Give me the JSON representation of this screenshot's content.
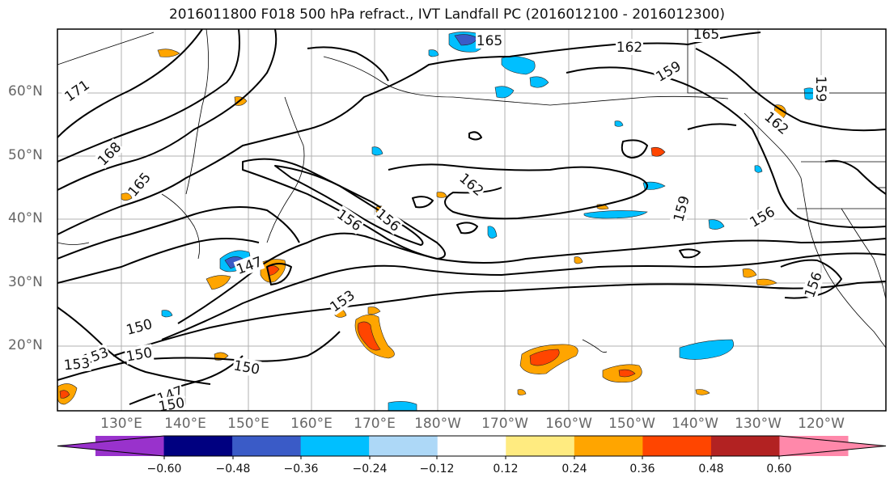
{
  "title": "2016011800 F018 500 hPa refract., IVT Landfall PC (2016012100 - 2016012300)",
  "map": {
    "lat_labels": [
      {
        "text": "60°N",
        "lat": 60
      },
      {
        "text": "50°N",
        "lat": 50
      },
      {
        "text": "40°N",
        "lat": 40
      },
      {
        "text": "30°N",
        "lat": 30
      },
      {
        "text": "20°N",
        "lat": 20
      }
    ],
    "lon_labels": [
      "130°E",
      "140°E",
      "150°E",
      "160°E",
      "170°E",
      "180°W",
      "170°W",
      "160°W",
      "150°W",
      "140°W",
      "130°W",
      "120°W"
    ],
    "contour_labels": [
      "171",
      "168",
      "165",
      "165",
      "165",
      "162",
      "162",
      "162",
      "159",
      "159",
      "159",
      "156",
      "156",
      "156",
      "156",
      "153",
      "153",
      "153",
      "150",
      "150",
      "150",
      "147",
      "147",
      "150"
    ]
  },
  "colorbar": {
    "tick_labels": [
      "−0.60",
      "−0.48",
      "−0.36",
      "−0.24",
      "−0.12",
      "0.12",
      "0.24",
      "0.36",
      "0.48",
      "0.60"
    ],
    "colors": [
      "#9932CC",
      "#000080",
      "#3A5BC7",
      "#00BFFF",
      "#ADD8F7",
      "#FFFFFF",
      "#FFEB80",
      "#FFA500",
      "#FF4500",
      "#B22222",
      "#FF88AA"
    ]
  }
}
